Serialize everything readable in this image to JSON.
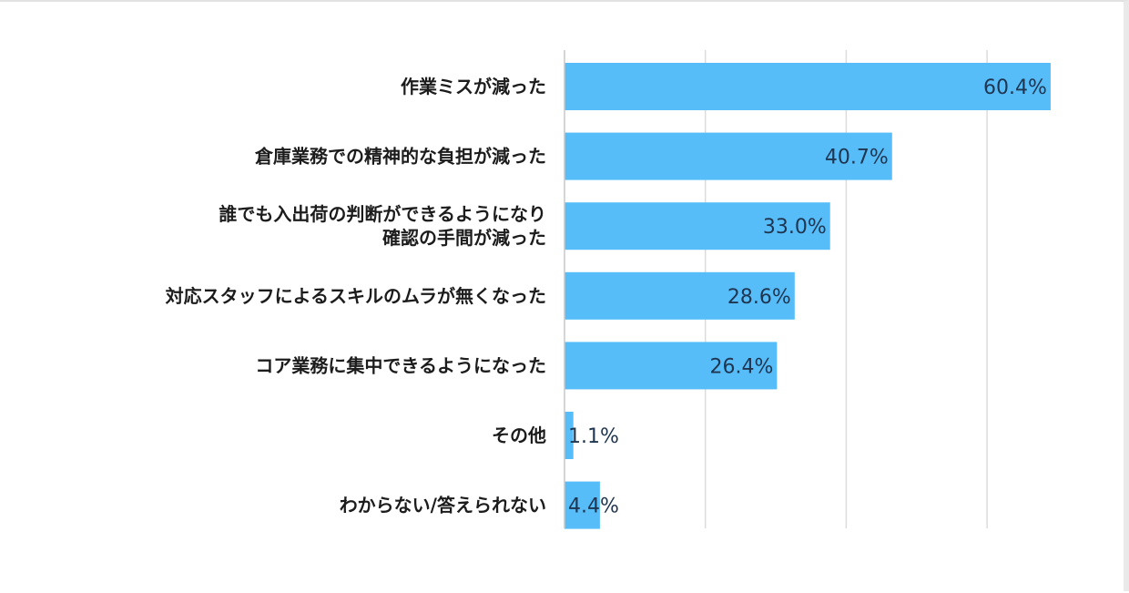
{
  "chart_data": {
    "type": "bar",
    "orientation": "horizontal",
    "categories": [
      [
        "作業ミスが減った"
      ],
      [
        "倉庫業務での精神的な負担が減った"
      ],
      [
        "誰でも入出荷の判断ができるようになり",
        "確認の手間が減った"
      ],
      [
        "対応スタッフによるスキルのムラが無くなった"
      ],
      [
        "コア業務に集中できるようになった"
      ],
      [
        "その他"
      ],
      [
        "わからない/答えられない"
      ]
    ],
    "values": [
      60.4,
      40.7,
      33.0,
      28.6,
      26.4,
      1.1,
      4.4
    ],
    "value_labels": [
      "60.4%",
      "40.7%",
      "33.0%",
      "28.6%",
      "26.4%",
      "1.1%",
      "4.4%"
    ],
    "xlim": [
      0,
      70
    ],
    "grid": true,
    "bar_color": "#56bdf9"
  }
}
